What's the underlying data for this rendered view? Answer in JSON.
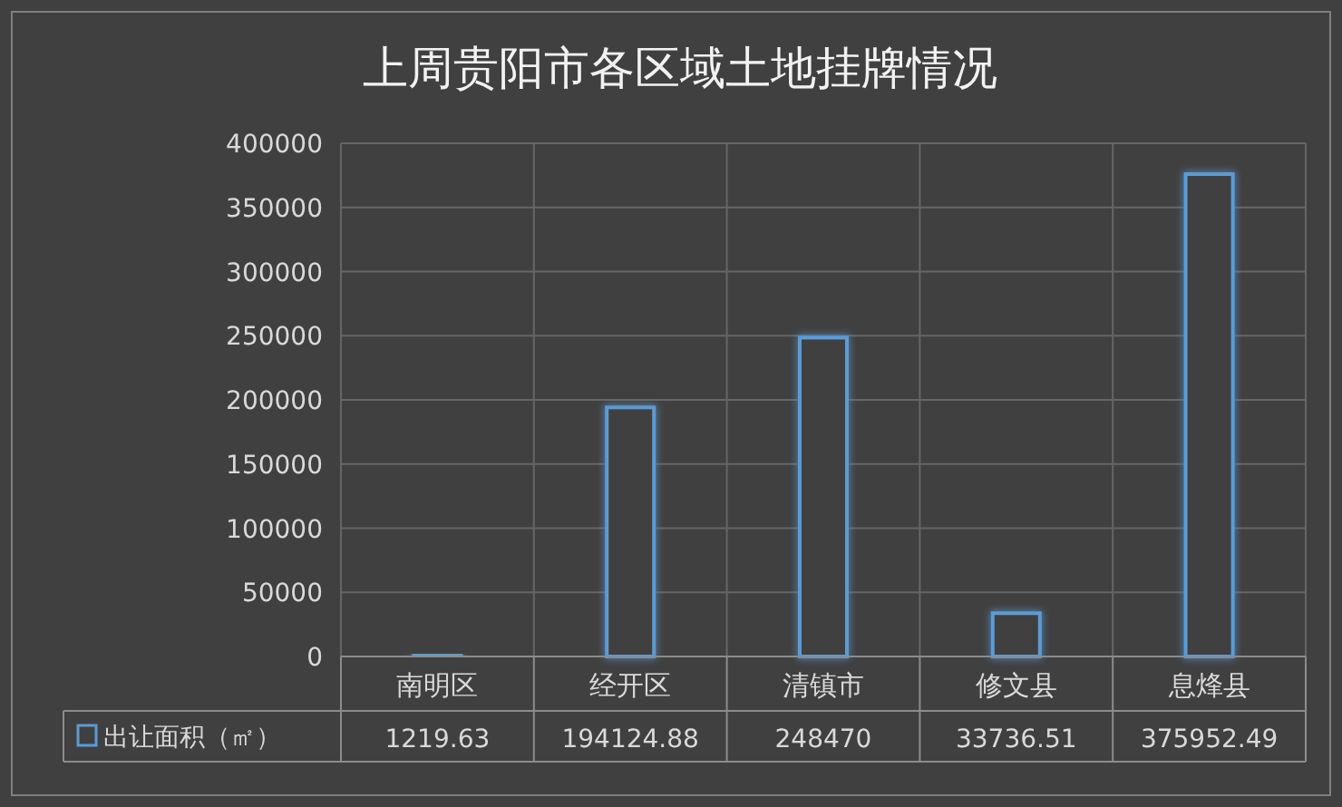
{
  "chart_data": {
    "type": "bar",
    "title": "上周贵阳市各区域土地挂牌情况",
    "categories": [
      "南明区",
      "经开区",
      "清镇市",
      "修文县",
      "息烽县"
    ],
    "series": [
      {
        "name": "出让面积（㎡）",
        "color": "#5b9bd5",
        "values": [
          1219.63,
          194124.88,
          248470,
          33736.51,
          375952.49
        ]
      }
    ],
    "ylim": [
      0,
      400000
    ],
    "yticks": [
      0,
      50000,
      100000,
      150000,
      200000,
      250000,
      300000,
      350000,
      400000
    ],
    "grid": true,
    "legend": "bottom",
    "data_labels": true
  }
}
